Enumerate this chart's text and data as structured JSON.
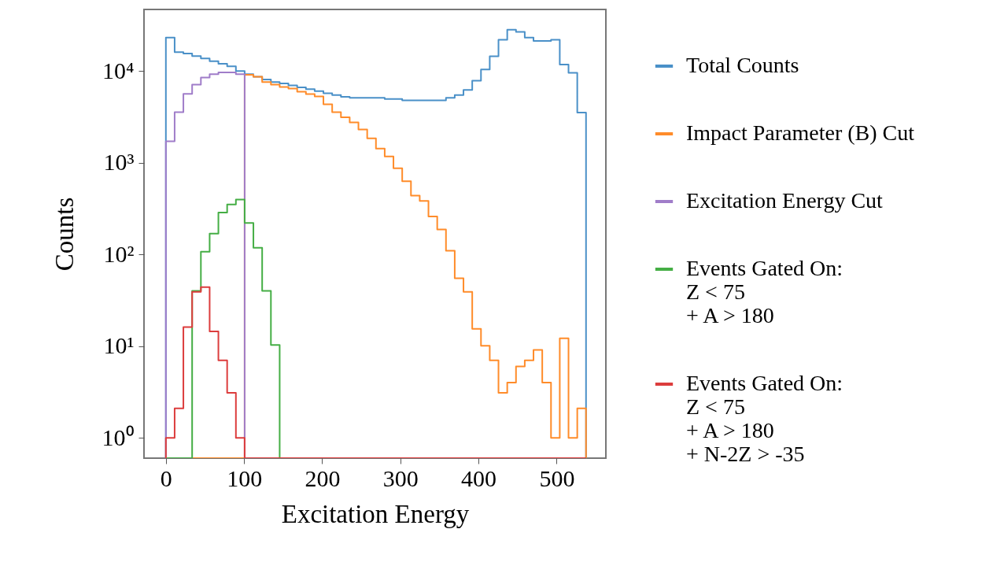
{
  "chart_data": {
    "type": "histogram",
    "xlabel": "Excitation Energy",
    "ylabel": "Counts",
    "bins": [
      0,
      11.2,
      22.4,
      33.6,
      44.8,
      56,
      67.2,
      78.4,
      89.6,
      100.8,
      112,
      123.2,
      134.4,
      145.6,
      156.8,
      168,
      179.2,
      190.4,
      201.6,
      212.8,
      224,
      235.2,
      246.4,
      257.6,
      268.8,
      280,
      291.2,
      302.4,
      313.6,
      324.8,
      336,
      347.2,
      358.4,
      369.6,
      380.8,
      392,
      403.2,
      414.4,
      425.6,
      436.8,
      448,
      459.2,
      470.4,
      481.6,
      492.8,
      504,
      515.2,
      526.4,
      537.6
    ],
    "series": [
      {
        "name": "Total Counts",
        "color": "#4a90c8",
        "values": [
          23200,
          16100,
          15500,
          14600,
          13700,
          12800,
          12000,
          11250,
          10000,
          9250,
          8650,
          8100,
          7600,
          7340,
          6970,
          6650,
          6360,
          6030,
          5730,
          5470,
          5230,
          5120,
          5120,
          5120,
          5120,
          4950,
          4950,
          4800,
          4800,
          4800,
          4800,
          4800,
          5120,
          5470,
          6240,
          7850,
          10400,
          14500,
          22000,
          28200,
          26700,
          23200,
          21300,
          21300,
          22000,
          11800,
          9550,
          3520
        ]
      },
      {
        "name": "Impact Parameter (B) Cut",
        "color": "#ff8c2a",
        "values": [
          null,
          null,
          null,
          null,
          null,
          null,
          null,
          null,
          null,
          9100,
          8650,
          7590,
          7110,
          6700,
          6450,
          5960,
          5600,
          5300,
          4350,
          3570,
          3130,
          2750,
          2300,
          1850,
          1430,
          1170,
          871,
          627,
          438,
          384,
          259,
          187,
          110,
          55,
          39,
          15.4,
          10.1,
          7.0,
          3.1,
          4.0,
          6.0,
          7.0,
          9.1,
          4.0,
          1.0,
          12.2,
          1.0,
          2.1
        ]
      },
      {
        "name": "Excitation Energy Cut",
        "color": "#a07dc9",
        "values": [
          1710,
          3570,
          5650,
          7110,
          8490,
          9250,
          9680,
          9680,
          9250,
          null,
          null,
          null,
          null,
          null,
          null,
          null,
          null,
          null,
          null,
          null,
          null,
          null,
          null,
          null,
          null,
          null,
          null,
          null,
          null,
          null,
          null,
          null,
          null,
          null,
          null,
          null,
          null,
          null,
          null,
          null,
          null,
          null,
          null,
          null,
          null,
          null,
          null,
          null
        ]
      },
      {
        "name": "Events Gated On:\nZ < 75\n+ A > 180",
        "color": "#45ae45",
        "values": [
          null,
          null,
          null,
          40,
          107,
          169,
          286,
          350,
          396,
          220,
          118,
          40,
          10.3,
          null,
          null,
          null,
          null,
          null,
          null,
          null,
          null,
          null,
          null,
          null,
          null,
          null,
          null,
          null,
          null,
          null,
          null,
          null,
          null,
          null,
          null,
          null,
          null,
          null,
          null,
          null,
          null,
          null,
          null,
          null,
          null,
          null,
          null,
          null
        ]
      },
      {
        "name": "Events Gated On:\nZ < 75\n+ A > 180\n+ N-2Z > -35",
        "color": "#dc3d3d",
        "values": [
          1.0,
          2.1,
          16.1,
          39,
          44,
          14.5,
          7.0,
          3.1,
          1.0,
          null,
          null,
          null,
          null,
          null,
          null,
          null,
          null,
          null,
          null,
          null,
          null,
          null,
          null,
          null,
          null,
          null,
          null,
          null,
          null,
          null,
          null,
          null,
          null,
          null,
          null,
          null,
          null,
          null,
          null,
          null,
          null,
          null,
          null,
          null,
          null,
          null,
          null,
          null
        ]
      }
    ],
    "xlim": [
      -28,
      563
    ],
    "xticks": [
      0,
      100,
      200,
      300,
      400,
      500
    ],
    "ylim": [
      0.6,
      47000
    ],
    "yticks": [
      {
        "value": 1,
        "label": "10⁰"
      },
      {
        "value": 10,
        "label": "10¹"
      },
      {
        "value": 100,
        "label": "10²"
      },
      {
        "value": 1000,
        "label": "10³"
      },
      {
        "value": 10000,
        "label": "10⁴"
      }
    ],
    "log": true,
    "legend": "right"
  }
}
